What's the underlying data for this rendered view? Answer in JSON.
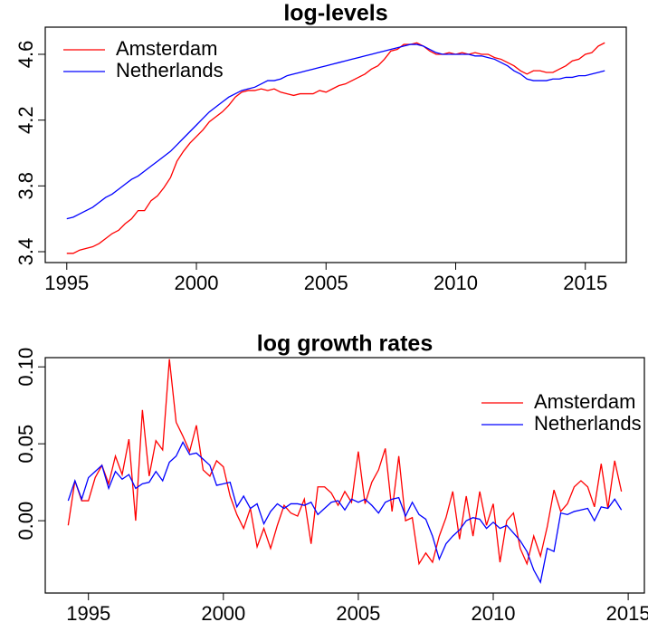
{
  "chart_data": [
    {
      "type": "line",
      "title": "log-levels",
      "legend": "topleft",
      "xlim": [
        1994.17,
        2016.58
      ],
      "ylim": [
        3.334,
        4.765
      ],
      "xticks": [
        1995,
        2000,
        2005,
        2010,
        2015
      ],
      "yticks": [
        3.4,
        3.8,
        4.2,
        4.6
      ],
      "x": [
        1995,
        1995.25,
        1995.5,
        1995.75,
        1996,
        1996.25,
        1996.5,
        1996.75,
        1997,
        1997.25,
        1997.5,
        1997.75,
        1998,
        1998.25,
        1998.5,
        1998.75,
        1999,
        1999.25,
        1999.5,
        1999.75,
        2000,
        2000.25,
        2000.5,
        2000.75,
        2001,
        2001.25,
        2001.5,
        2001.75,
        2002,
        2002.25,
        2002.5,
        2002.75,
        2003,
        2003.25,
        2003.5,
        2003.75,
        2004,
        2004.25,
        2004.5,
        2004.75,
        2005,
        2005.25,
        2005.5,
        2005.75,
        2006,
        2006.25,
        2006.5,
        2006.75,
        2007,
        2007.25,
        2007.5,
        2007.75,
        2008,
        2008.25,
        2008.5,
        2008.75,
        2009,
        2009.25,
        2009.5,
        2009.75,
        2010,
        2010.25,
        2010.5,
        2010.75,
        2011,
        2011.25,
        2011.5,
        2011.75,
        2012,
        2012.25,
        2012.5,
        2012.75,
        2013,
        2013.25,
        2013.5,
        2013.75,
        2014,
        2014.25,
        2014.5,
        2014.75,
        2015,
        2015.25,
        2015.5,
        2015.75
      ],
      "series": [
        {
          "name": "Amsterdam",
          "color": "#ff0000",
          "values": [
            3.39,
            3.39,
            3.41,
            3.42,
            3.43,
            3.45,
            3.48,
            3.51,
            3.53,
            3.57,
            3.6,
            3.65,
            3.65,
            3.71,
            3.74,
            3.79,
            3.85,
            3.95,
            4.01,
            4.06,
            4.1,
            4.14,
            4.19,
            4.22,
            4.25,
            4.29,
            4.34,
            4.37,
            4.38,
            4.38,
            4.39,
            4.38,
            4.39,
            4.37,
            4.36,
            4.35,
            4.36,
            4.36,
            4.36,
            4.38,
            4.37,
            4.39,
            4.41,
            4.42,
            4.44,
            4.46,
            4.48,
            4.51,
            4.53,
            4.57,
            4.62,
            4.63,
            4.66,
            4.66,
            4.67,
            4.65,
            4.62,
            4.6,
            4.6,
            4.61,
            4.6,
            4.61,
            4.6,
            4.61,
            4.6,
            4.6,
            4.58,
            4.57,
            4.55,
            4.53,
            4.5,
            4.48,
            4.5,
            4.5,
            4.49,
            4.49,
            4.51,
            4.53,
            4.56,
            4.57,
            4.6,
            4.61,
            4.65,
            4.67
          ]
        },
        {
          "name": "Netherlands",
          "color": "#0000ff",
          "values": [
            3.6,
            3.61,
            3.63,
            3.65,
            3.67,
            3.7,
            3.73,
            3.75,
            3.78,
            3.81,
            3.84,
            3.86,
            3.89,
            3.92,
            3.95,
            3.98,
            4.01,
            4.05,
            4.09,
            4.13,
            4.17,
            4.21,
            4.25,
            4.28,
            4.31,
            4.34,
            4.36,
            4.38,
            4.39,
            4.4,
            4.42,
            4.44,
            4.44,
            4.45,
            4.47,
            4.48,
            4.49,
            4.5,
            4.51,
            4.52,
            4.53,
            4.54,
            4.55,
            4.56,
            4.57,
            4.58,
            4.59,
            4.6,
            4.61,
            4.62,
            4.63,
            4.64,
            4.65,
            4.66,
            4.66,
            4.65,
            4.63,
            4.61,
            4.6,
            4.6,
            4.6,
            4.6,
            4.6,
            4.59,
            4.59,
            4.58,
            4.57,
            4.55,
            4.53,
            4.5,
            4.48,
            4.45,
            4.44,
            4.44,
            4.44,
            4.45,
            4.45,
            4.46,
            4.46,
            4.47,
            4.47,
            4.48,
            4.49,
            4.5
          ]
        }
      ]
    },
    {
      "type": "line",
      "title": "log growth rates",
      "legend": "topright",
      "xlim": [
        1993.4,
        2015.6
      ],
      "ylim": [
        -0.047,
        0.106
      ],
      "xticks": [
        1995,
        2000,
        2005,
        2010,
        2015
      ],
      "yticks": [
        {
          "value": 0,
          "label": "0.00"
        },
        {
          "value": 0.05,
          "label": "0.05"
        },
        {
          "value": 0.1,
          "label": "0.10"
        }
      ],
      "x": [
        1994.25,
        1994.5,
        1994.75,
        1995,
        1995.25,
        1995.5,
        1995.75,
        1996,
        1996.25,
        1996.5,
        1996.75,
        1997,
        1997.25,
        1997.5,
        1997.75,
        1998,
        1998.25,
        1998.5,
        1998.75,
        1999,
        1999.25,
        1999.5,
        1999.75,
        2000,
        2000.25,
        2000.5,
        2000.75,
        2001,
        2001.25,
        2001.5,
        2001.75,
        2002,
        2002.25,
        2002.5,
        2002.75,
        2003,
        2003.25,
        2003.5,
        2003.75,
        2004,
        2004.25,
        2004.5,
        2004.75,
        2005,
        2005.25,
        2005.5,
        2005.75,
        2006,
        2006.25,
        2006.5,
        2006.75,
        2007,
        2007.25,
        2007.5,
        2007.75,
        2008,
        2008.25,
        2008.5,
        2008.75,
        2009,
        2009.25,
        2009.5,
        2009.75,
        2010,
        2010.25,
        2010.5,
        2010.75,
        2011,
        2011.25,
        2011.5,
        2011.75,
        2012,
        2012.25,
        2012.5,
        2012.75,
        2013,
        2013.25,
        2013.5,
        2013.75,
        2014,
        2014.25,
        2014.5,
        2014.75
      ],
      "series": [
        {
          "name": "Amsterdam",
          "color": "#ff0000",
          "values": [
            -0.003,
            0.026,
            0.013,
            0.013,
            0.028,
            0.036,
            0.024,
            0.042,
            0.03,
            0.053,
            0.0,
            0.072,
            0.029,
            0.052,
            0.046,
            0.105,
            0.064,
            0.055,
            0.045,
            0.062,
            0.033,
            0.029,
            0.039,
            0.035,
            0.016,
            0.004,
            -0.005,
            0.008,
            -0.017,
            -0.005,
            -0.018,
            -0.003,
            0.01,
            0.005,
            0.003,
            0.014,
            -0.015,
            0.022,
            0.022,
            0.018,
            0.01,
            0.019,
            0.012,
            0.045,
            0.011,
            0.025,
            0.033,
            0.047,
            0.006,
            0.042,
            0.0,
            0.002,
            -0.028,
            -0.021,
            -0.027,
            -0.01,
            0.002,
            0.019,
            -0.012,
            0.016,
            -0.01,
            0.019,
            -0.003,
            0.011,
            -0.027,
            0.0,
            0.005,
            -0.018,
            -0.028,
            -0.01,
            -0.023,
            -0.004,
            0.02,
            0.006,
            0.011,
            0.022,
            0.026,
            0.022,
            0.009,
            0.037,
            0.008,
            0.039,
            0.019
          ]
        },
        {
          "name": "Netherlands",
          "color": "#0000ff",
          "values": [
            0.013,
            0.026,
            0.014,
            0.028,
            0.032,
            0.036,
            0.021,
            0.032,
            0.027,
            0.03,
            0.021,
            0.024,
            0.025,
            0.032,
            0.026,
            0.038,
            0.042,
            0.051,
            0.043,
            0.044,
            0.04,
            0.036,
            0.023,
            0.024,
            0.025,
            0.009,
            0.016,
            0.008,
            0.011,
            -0.002,
            0.006,
            0.011,
            0.008,
            0.011,
            0.011,
            0.01,
            0.012,
            0.004,
            0.008,
            0.012,
            0.013,
            0.007,
            0.014,
            0.012,
            0.014,
            0.01,
            0.005,
            0.012,
            0.014,
            0.015,
            0.003,
            0.012,
            0.004,
            0.001,
            -0.01,
            -0.025,
            -0.015,
            -0.01,
            -0.006,
            0.0,
            0.002,
            0.001,
            -0.005,
            -0.001,
            -0.005,
            -0.003,
            -0.008,
            -0.013,
            -0.02,
            -0.032,
            -0.04,
            -0.018,
            -0.02,
            0.005,
            0.004,
            0.006,
            0.007,
            0.008,
            0.0,
            0.009,
            0.008,
            0.014,
            0.007
          ]
        }
      ]
    }
  ]
}
